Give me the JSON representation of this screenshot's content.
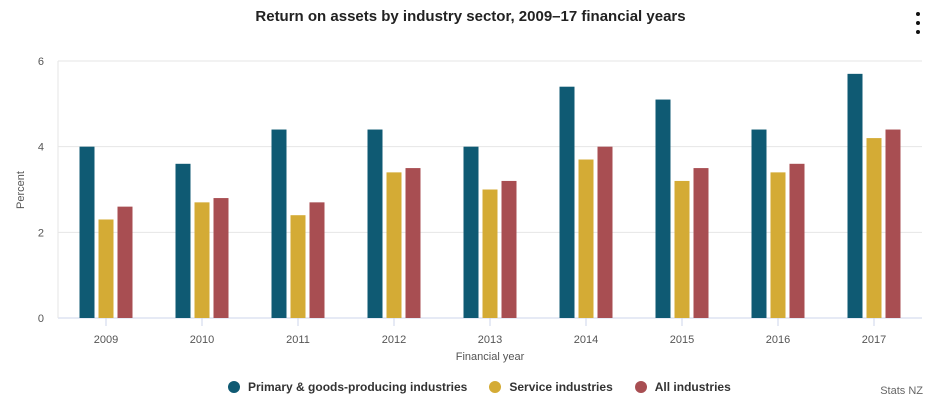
{
  "menu": {
    "icon": "vertical-dots-icon"
  },
  "credits": "Stats NZ",
  "chart_data": {
    "type": "bar",
    "title": "Return on assets by industry sector, 2009–17 financial years",
    "xlabel": "Financial year",
    "ylabel": "Percent",
    "ylim": [
      0,
      6
    ],
    "yticks": [
      "0",
      "2",
      "4",
      "6"
    ],
    "grid": true,
    "legend_position": "bottom",
    "categories": [
      "2009",
      "2010",
      "2011",
      "2012",
      "2013",
      "2014",
      "2015",
      "2016",
      "2017"
    ],
    "series": [
      {
        "name": "Primary & goods-producing industries",
        "color": "#0f5a73",
        "values": [
          4.0,
          3.6,
          4.4,
          4.4,
          4.0,
          5.4,
          5.1,
          4.4,
          5.7
        ]
      },
      {
        "name": "Service industries",
        "color": "#d4ab35",
        "values": [
          2.3,
          2.7,
          2.4,
          3.4,
          3.0,
          3.7,
          3.2,
          3.4,
          4.2
        ]
      },
      {
        "name": "All industries",
        "color": "#a84e52",
        "values": [
          2.6,
          2.8,
          2.7,
          3.5,
          3.2,
          4.0,
          3.5,
          3.6,
          4.4
        ]
      }
    ]
  }
}
